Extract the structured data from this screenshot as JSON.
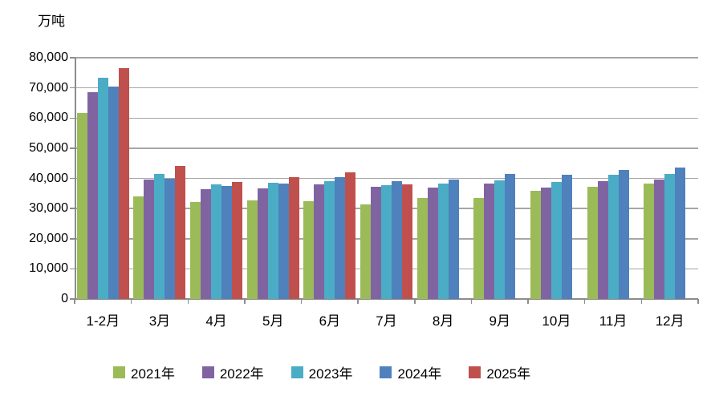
{
  "unit_label": "万吨",
  "colors": {
    "series_2021": "#9BBB59",
    "series_2022": "#8064A2",
    "series_2023": "#4BACC6",
    "series_2024": "#4F81BD",
    "series_2025": "#C0504D",
    "gridline": "#A6A6A6",
    "axis": "#8C8C8C"
  },
  "chart_data": {
    "type": "bar",
    "title": "",
    "xlabel": "",
    "ylabel": "万吨",
    "ylim": [
      0,
      80000
    ],
    "ytick_step": 10000,
    "ytick_labels": [
      "0",
      "10,000",
      "20,000",
      "30,000",
      "40,000",
      "50,000",
      "60,000",
      "70,000",
      "80,000"
    ],
    "grid": true,
    "legend_position": "bottom",
    "categories": [
      "1-2月",
      "3月",
      "4月",
      "5月",
      "6月",
      "7月",
      "8月",
      "9月",
      "10月",
      "11月",
      "12月"
    ],
    "series": [
      {
        "name": "2021年",
        "color": "#9BBB59",
        "values": [
          61700,
          34100,
          32200,
          32700,
          32300,
          31400,
          33500,
          33400,
          35800,
          37100,
          38200
        ]
      },
      {
        "name": "2022年",
        "color": "#8064A2",
        "values": [
          68700,
          39500,
          36300,
          36800,
          37900,
          37300,
          37000,
          38300,
          36900,
          39000,
          39700
        ]
      },
      {
        "name": "2023年",
        "color": "#4BACC6",
        "values": [
          73400,
          41500,
          38000,
          38600,
          39000,
          37800,
          38200,
          39300,
          38800,
          41300,
          41400
        ]
      },
      {
        "name": "2024年",
        "color": "#4F81BD",
        "values": [
          70500,
          39900,
          37400,
          38400,
          40500,
          39000,
          39700,
          41400,
          41100,
          42700,
          43600
        ]
      },
      {
        "name": "2025年",
        "color": "#C0504D",
        "values": [
          76500,
          44000,
          38900,
          40400,
          42100,
          38100,
          null,
          null,
          null,
          null,
          null
        ]
      }
    ]
  }
}
